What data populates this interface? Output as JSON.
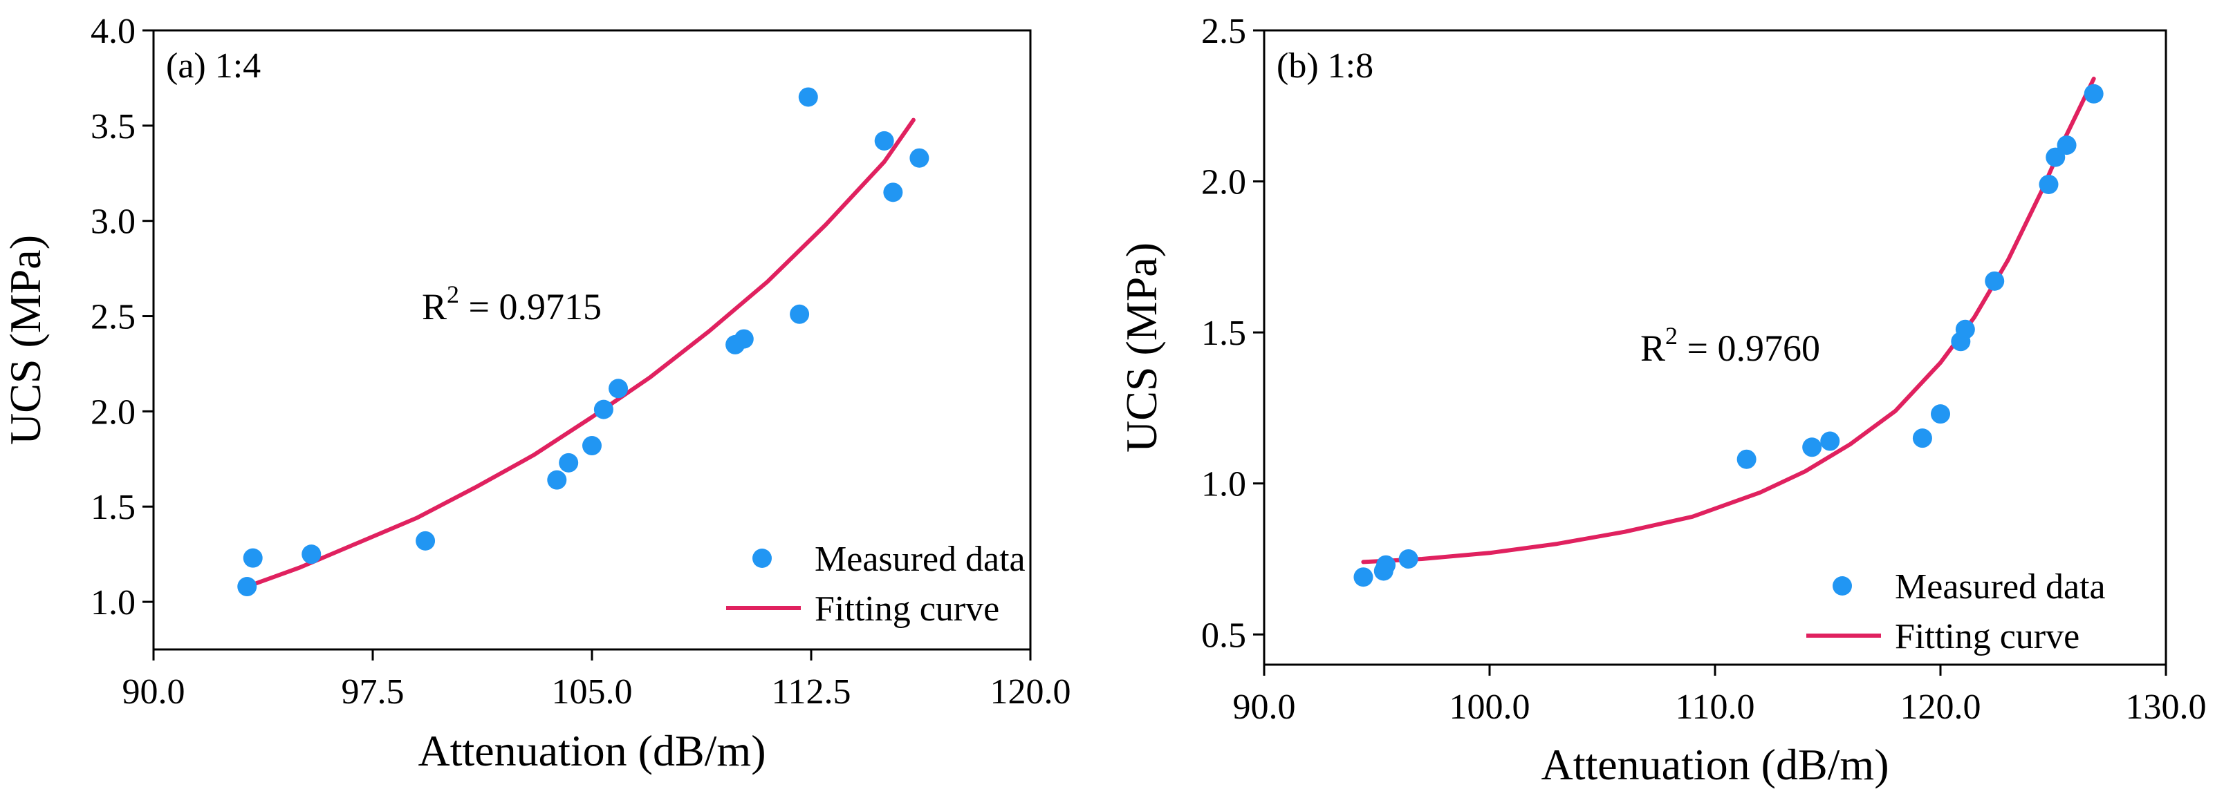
{
  "colors": {
    "points": "#2196F3",
    "curve": "#E0215F",
    "axis": "#000000"
  },
  "chart_data": [
    {
      "type": "scatter",
      "panel_label": "(a) 1:4",
      "xlabel": "Attenuation (dB/m)",
      "ylabel": "UCS (MPa)",
      "xlim": [
        90,
        120
      ],
      "ylim": [
        0.75,
        4.0
      ],
      "xticks": [
        90,
        97.5,
        105,
        112.5,
        120
      ],
      "xtick_labels": [
        "90.0",
        "97.5",
        "105.0",
        "112.5",
        "120.0"
      ],
      "yticks": [
        1.0,
        1.5,
        2.0,
        2.5,
        3.0,
        3.5,
        4.0
      ],
      "ytick_labels": [
        "1.0",
        "1.5",
        "2.0",
        "2.5",
        "3.0",
        "3.5",
        "4.0"
      ],
      "r2_prefix": "R",
      "r2_sup": "2",
      "r2_value": " = 0.9715",
      "legend": {
        "points": "Measured data",
        "curve": "Fitting curve",
        "position": "bottom-right"
      },
      "series": [
        {
          "name": "Measured data",
          "x": [
            93.2,
            93.4,
            95.4,
            99.3,
            103.8,
            104.2,
            105.0,
            105.4,
            105.9,
            109.9,
            110.2,
            112.1,
            112.4,
            115.0,
            115.3,
            116.2
          ],
          "y": [
            1.08,
            1.23,
            1.25,
            1.32,
            1.64,
            1.73,
            1.82,
            2.01,
            2.12,
            2.35,
            2.38,
            2.51,
            3.65,
            3.42,
            3.15,
            3.33
          ]
        },
        {
          "name": "Fitting curve",
          "x": [
            93.2,
            95.0,
            97.0,
            99.0,
            101.0,
            103.0,
            105.0,
            107.0,
            109.0,
            111.0,
            113.0,
            115.0,
            116.0
          ],
          "y": [
            1.08,
            1.18,
            1.31,
            1.44,
            1.6,
            1.77,
            1.97,
            2.18,
            2.42,
            2.68,
            2.98,
            3.31,
            3.53
          ]
        }
      ]
    },
    {
      "type": "scatter",
      "panel_label": "(b) 1:8",
      "xlabel": "Attenuation (dB/m)",
      "ylabel": "UCS (MPa)",
      "xlim": [
        90,
        130
      ],
      "ylim": [
        0.4,
        2.5
      ],
      "xticks": [
        90,
        100,
        110,
        120,
        130
      ],
      "xtick_labels": [
        "90.0",
        "100.0",
        "110.0",
        "120.0",
        "130.0"
      ],
      "yticks": [
        0.5,
        1.0,
        1.5,
        2.0,
        2.5
      ],
      "ytick_labels": [
        "0.5",
        "1.0",
        "1.5",
        "2.0",
        "2.5"
      ],
      "r2_prefix": "R",
      "r2_sup": "2",
      "r2_value": " = 0.9760",
      "legend": {
        "points": "Measured data",
        "curve": "Fitting curve",
        "position": "bottom-right"
      },
      "series": [
        {
          "name": "Measured data",
          "x": [
            94.4,
            95.3,
            95.4,
            96.4,
            111.4,
            114.3,
            115.1,
            119.2,
            120.0,
            120.9,
            121.1,
            122.4,
            124.8,
            125.1,
            125.6,
            126.8
          ],
          "y": [
            0.69,
            0.71,
            0.73,
            0.75,
            1.08,
            1.12,
            1.14,
            1.15,
            1.23,
            1.47,
            1.51,
            1.67,
            1.99,
            2.08,
            2.12,
            2.29
          ]
        },
        {
          "name": "Fitting curve",
          "x": [
            94.4,
            97.0,
            100.0,
            103.0,
            106.0,
            109.0,
            112.0,
            114.0,
            116.0,
            118.0,
            120.0,
            121.5,
            123.0,
            124.5,
            125.5,
            126.8
          ],
          "y": [
            0.74,
            0.75,
            0.77,
            0.8,
            0.84,
            0.89,
            0.97,
            1.04,
            1.13,
            1.24,
            1.4,
            1.55,
            1.74,
            1.97,
            2.14,
            2.34
          ]
        }
      ]
    }
  ]
}
